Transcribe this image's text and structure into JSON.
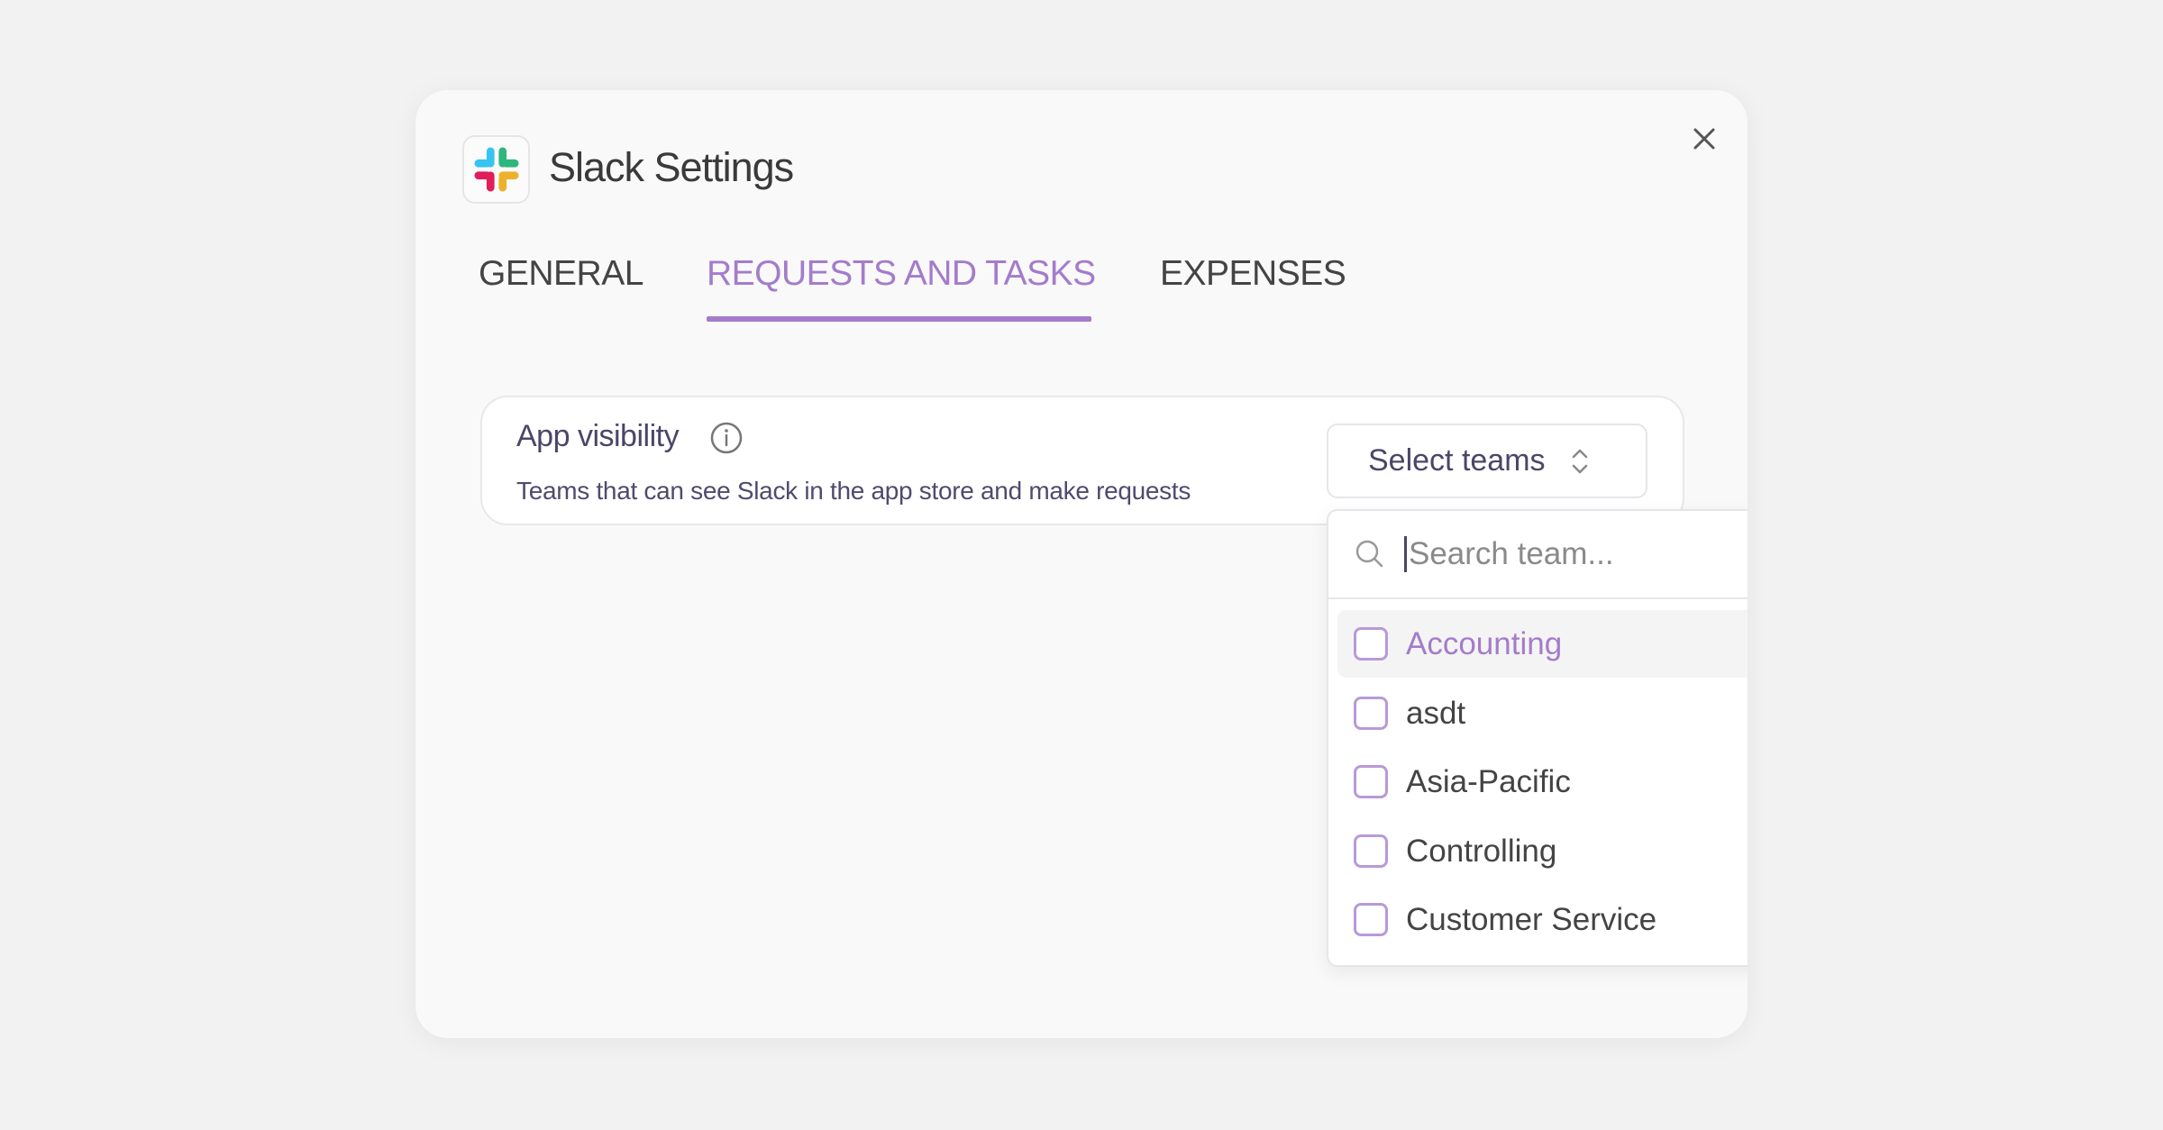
{
  "modal": {
    "title": "Slack Settings",
    "logo_icon": "slack-logo",
    "close_icon": "close-icon"
  },
  "tabs": [
    {
      "label": "GENERAL",
      "active": false
    },
    {
      "label": "REQUESTS AND TASKS",
      "active": true
    },
    {
      "label": "EXPENSES",
      "active": false
    }
  ],
  "accent_color": "#a47ccb",
  "visibility": {
    "title": "App visibility",
    "description": "Teams that can see Slack in the app store and make requests",
    "select_label": "Select teams"
  },
  "dropdown": {
    "search_placeholder": "Search team...",
    "items": [
      {
        "label": "Accounting",
        "checked": false,
        "highlighted": true
      },
      {
        "label": "asdt",
        "checked": false
      },
      {
        "label": "Asia-Pacific",
        "checked": false
      },
      {
        "label": "Controlling",
        "checked": false
      },
      {
        "label": "Customer Service",
        "checked": false
      }
    ]
  }
}
